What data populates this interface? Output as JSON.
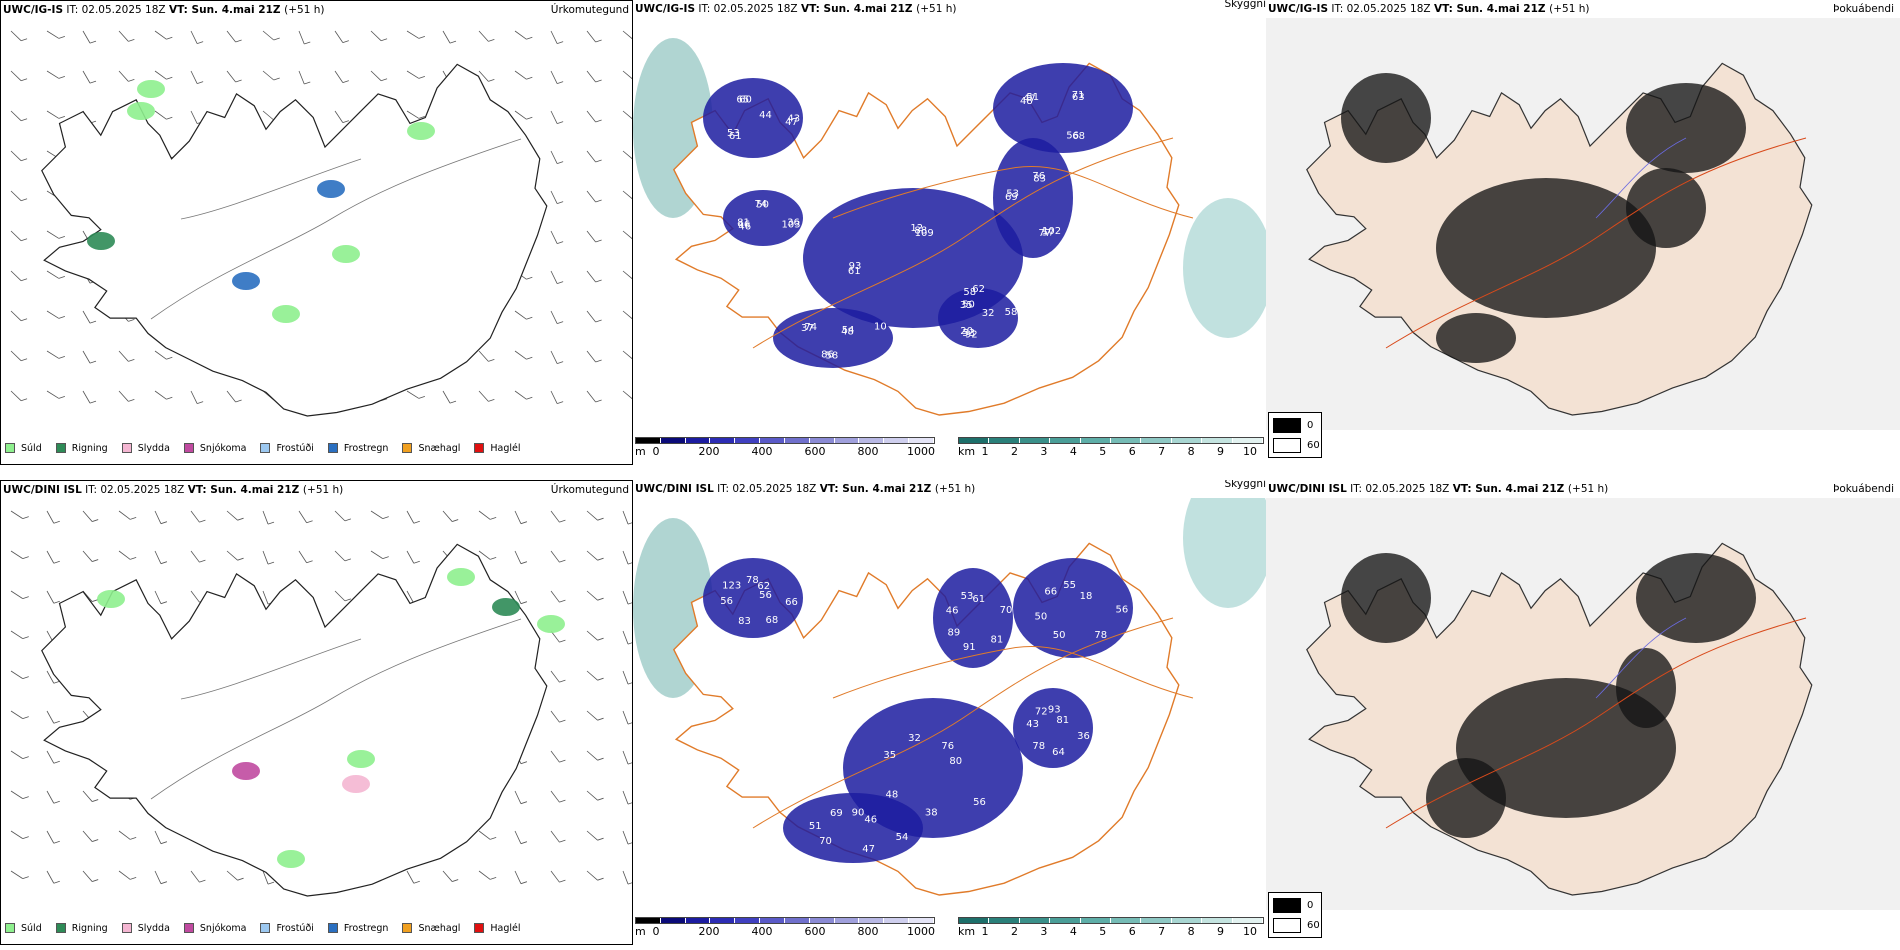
{
  "rows": [
    {
      "model": "UWC/IG-IS",
      "it_label": "IT:",
      "it_value": "02.05.2025 18Z",
      "vt_label": "VT:",
      "vt_value": "Sun. 4.mai 21Z",
      "lead": "(+51 h)",
      "panel_titles": [
        "Úrkomutegund",
        "Skyggni",
        "Þokuábendi"
      ],
      "cloud_labels": [
        "44",
        "46",
        "12",
        "102",
        "48",
        "54",
        "92",
        "65",
        "36",
        "61",
        "76",
        "68",
        "37",
        "32",
        "61",
        "74",
        "62",
        "69",
        "71",
        "58",
        "35",
        "43",
        "46",
        "88",
        "57",
        "47",
        "48",
        "53",
        "60",
        "103",
        "93",
        "83",
        "56",
        "74",
        "58",
        "53",
        "50",
        "58",
        "53",
        "63",
        "86",
        "50",
        "47",
        "81",
        "109",
        "77",
        "51",
        "10",
        "20"
      ]
    },
    {
      "model": "UWC/DINI ISL",
      "it_label": "IT:",
      "it_value": "02.05.2025 18Z",
      "vt_label": "VT:",
      "vt_value": "Sun. 4.mai 21Z",
      "lead": "(+51 h)",
      "panel_titles": [
        "Úrkomutegund",
        "Skyggni",
        "Þokuábendi"
      ],
      "cloud_labels": [
        "56",
        "48",
        "93",
        "78",
        "46",
        "46",
        "83",
        "32",
        "36",
        "50",
        "61",
        "47",
        "123",
        "80",
        "78",
        "55",
        "81",
        "51",
        "62",
        "38",
        "72",
        "56",
        "89",
        "90",
        "68",
        "35",
        "81",
        "50",
        "53",
        "54",
        "56",
        "76",
        "64",
        "66",
        "70",
        "70",
        "78",
        "56",
        "43",
        "18",
        "91",
        "69",
        "66"
      ]
    }
  ],
  "precip_legend": [
    {
      "label": "Súld",
      "color": "#8ef08e"
    },
    {
      "label": "Rigning",
      "color": "#2e8b57"
    },
    {
      "label": "Slydda",
      "color": "#f4b6d2"
    },
    {
      "label": "Snjókoma",
      "color": "#c04aa0"
    },
    {
      "label": "Frostúði",
      "color": "#9cc8f0"
    },
    {
      "label": "Frostregn",
      "color": "#2a6fc0"
    },
    {
      "label": "Snæhagl",
      "color": "#f0a020"
    },
    {
      "label": "Haglél",
      "color": "#e01010"
    }
  ],
  "cloud_base_scale": {
    "unit": "m",
    "ticks": [
      "0",
      "200",
      "400",
      "600",
      "800",
      "1000"
    ],
    "colors": [
      "#000000",
      "#0a0a78",
      "#1c1ca0",
      "#2c2cb4",
      "#4040c0",
      "#5a5ac8",
      "#7070cc",
      "#8a8ad4",
      "#a0a0dc",
      "#b8b8e4",
      "#cfcfee",
      "#e4e4f6"
    ]
  },
  "visibility_scale": {
    "unit": "km",
    "ticks": [
      "1",
      "2",
      "3",
      "4",
      "5",
      "6",
      "7",
      "8",
      "9",
      "10"
    ],
    "colors": [
      "#1d6f6a",
      "#2a807a",
      "#3a908a",
      "#4a9e98",
      "#5eaea8",
      "#76bcb6",
      "#8ec8c4",
      "#a8d6d2",
      "#c4e4e0",
      "#e2f2f0"
    ]
  },
  "fog_scale": {
    "labels": [
      "0",
      "60"
    ],
    "colors": [
      "#000000",
      "#ffffff"
    ]
  }
}
